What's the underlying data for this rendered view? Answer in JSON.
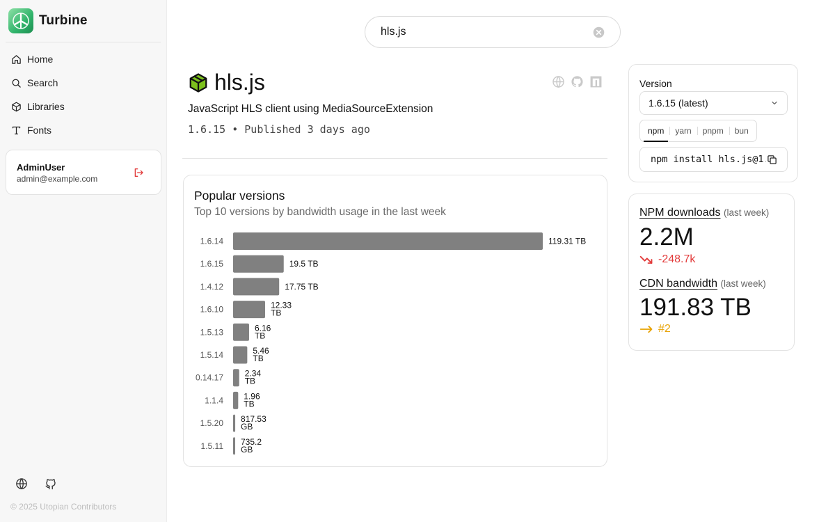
{
  "app": {
    "name": "Turbine"
  },
  "nav": [
    {
      "label": "Home",
      "icon": "home-icon"
    },
    {
      "label": "Search",
      "icon": "search-icon"
    },
    {
      "label": "Libraries",
      "icon": "box-icon"
    },
    {
      "label": "Fonts",
      "icon": "type-icon"
    }
  ],
  "user": {
    "name": "AdminUser",
    "email": "admin@example.com"
  },
  "footer": {
    "copyright": "© 2025 Utopian Contributors"
  },
  "search": {
    "value": "hls.js"
  },
  "package": {
    "name": "hls.js",
    "description": "JavaScript HLS client using MediaSourceExtension",
    "meta": "1.6.15 • Published 3 days ago",
    "icon_color": "#7cc11c"
  },
  "version_panel": {
    "label": "Version",
    "selected": "1.6.15 (latest)",
    "tabs": [
      "npm",
      "yarn",
      "pnpm",
      "bun"
    ],
    "active_tab": "npm",
    "install_command": "npm install hls.js@1.6.15"
  },
  "stats": {
    "npm": {
      "label": "NPM downloads",
      "period": "(last week)",
      "value": "2.2M",
      "change": "-248.7k",
      "trend": "down"
    },
    "cdn": {
      "label": "CDN bandwidth",
      "period": "(last week)",
      "value": "191.83 TB",
      "change": "#2",
      "trend": "flat"
    }
  },
  "colors": {
    "bar": "#808080",
    "down": "#e23b3b",
    "flat": "#e8a200",
    "accent": "#2fb36a"
  },
  "chart_data": {
    "type": "bar",
    "orientation": "horizontal",
    "title": "Popular versions",
    "subtitle": "Top 10 versions by bandwidth usage in the last week",
    "categories": [
      "1.6.14",
      "1.6.15",
      "1.4.12",
      "1.6.10",
      "1.5.13",
      "1.5.14",
      "0.14.17",
      "1.1.4",
      "1.5.20",
      "1.5.11"
    ],
    "values_tb": [
      119.31,
      19.5,
      17.75,
      12.33,
      6.16,
      5.46,
      2.34,
      1.96,
      0.81753,
      0.7352
    ],
    "labels": [
      [
        "119.31 TB"
      ],
      [
        "19.5 TB"
      ],
      [
        "17.75 TB"
      ],
      [
        "12.33",
        "TB"
      ],
      [
        "6.16",
        "TB"
      ],
      [
        "5.46",
        "TB"
      ],
      [
        "2.34",
        "TB"
      ],
      [
        "1.96",
        "TB"
      ],
      [
        "817.53",
        "GB"
      ],
      [
        "735.2",
        "GB"
      ]
    ]
  }
}
